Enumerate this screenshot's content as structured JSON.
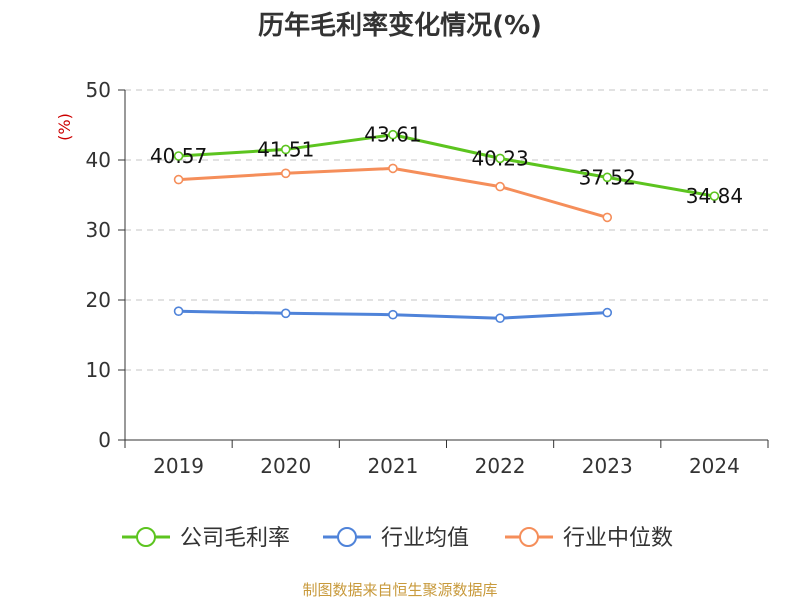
{
  "chart_data": {
    "type": "line",
    "title": "历年毛利率变化情况(%)",
    "ylabel": "(%)",
    "xlabel": "",
    "categories": [
      "2019",
      "2020",
      "2021",
      "2022",
      "2023",
      "2024"
    ],
    "ylim": [
      0,
      50
    ],
    "yticks": [
      0,
      10,
      20,
      30,
      40,
      50
    ],
    "grid": true,
    "legend_position": "bottom",
    "series": [
      {
        "name": "公司毛利率",
        "color": "#5cc41f",
        "values": [
          40.57,
          41.51,
          43.61,
          40.23,
          37.52,
          34.84
        ],
        "labels": [
          "40.57",
          "41.51",
          "43.61",
          "40.23",
          "37.52",
          "34.84"
        ]
      },
      {
        "name": "行业均值",
        "color": "#4f83d9",
        "values": [
          18.4,
          18.1,
          17.9,
          17.4,
          18.2,
          null
        ]
      },
      {
        "name": "行业中位数",
        "color": "#f58e5a",
        "values": [
          37.2,
          38.1,
          38.8,
          36.2,
          31.8,
          null
        ]
      }
    ]
  },
  "source": "制图数据来自恒生聚源数据库"
}
